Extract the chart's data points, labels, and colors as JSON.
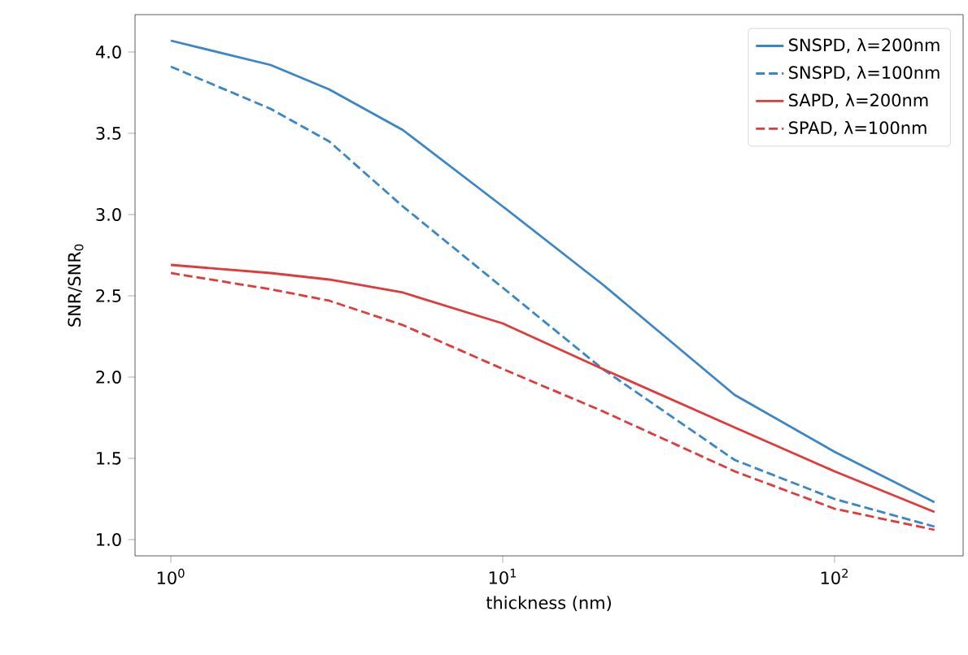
{
  "chart_data": {
    "type": "line",
    "xlabel": "thickness (nm)",
    "ylabel": "SNR/SNR$_{0}$",
    "log": "x",
    "x": [
      1,
      2,
      3,
      5,
      10,
      20,
      50,
      100,
      200
    ],
    "series": [
      {
        "name": "SNSPD, λ=200nm",
        "color": "#3b86c6",
        "line_style": "solid",
        "values": [
          4.07,
          3.92,
          3.77,
          3.52,
          3.05,
          2.57,
          1.89,
          1.54,
          1.23
        ]
      },
      {
        "name": "SNSPD, λ=100nm",
        "color": "#3b86c6",
        "line_style": "dashed",
        "values": [
          3.91,
          3.65,
          3.45,
          3.05,
          2.55,
          2.05,
          1.49,
          1.25,
          1.08
        ]
      },
      {
        "name": "SAPD, λ=200nm",
        "color": "#e03b3b",
        "line_style": "solid",
        "values": [
          2.69,
          2.64,
          2.6,
          2.52,
          2.33,
          2.05,
          1.69,
          1.42,
          1.17
        ]
      },
      {
        "name": "SPAD, λ=100nm",
        "color": "#e03b3b",
        "line_style": "dashed",
        "values": [
          2.64,
          2.54,
          2.47,
          2.32,
          2.05,
          1.79,
          1.42,
          1.19,
          1.06
        ]
      }
    ],
    "xlim": [
      0.78,
      244
    ],
    "ylim": [
      0.9,
      4.23
    ],
    "xticks": [
      {
        "value": 1,
        "label": "10$^{0}$"
      },
      {
        "value": 10,
        "label": "10$^{1}$"
      },
      {
        "value": 100,
        "label": "10$^{2}$"
      }
    ],
    "yticks": [
      {
        "value": 1,
        "label": "1.0"
      },
      {
        "value": 1.5,
        "label": "1.5"
      },
      {
        "value": 2,
        "label": "2.0"
      },
      {
        "value": 2.5,
        "label": "2.5"
      },
      {
        "value": 3,
        "label": "3.0"
      },
      {
        "value": 3.5,
        "label": "3.5"
      },
      {
        "value": 4,
        "label": "4.0"
      }
    ],
    "grid": false,
    "legend": "top right",
    "marker": "none"
  }
}
